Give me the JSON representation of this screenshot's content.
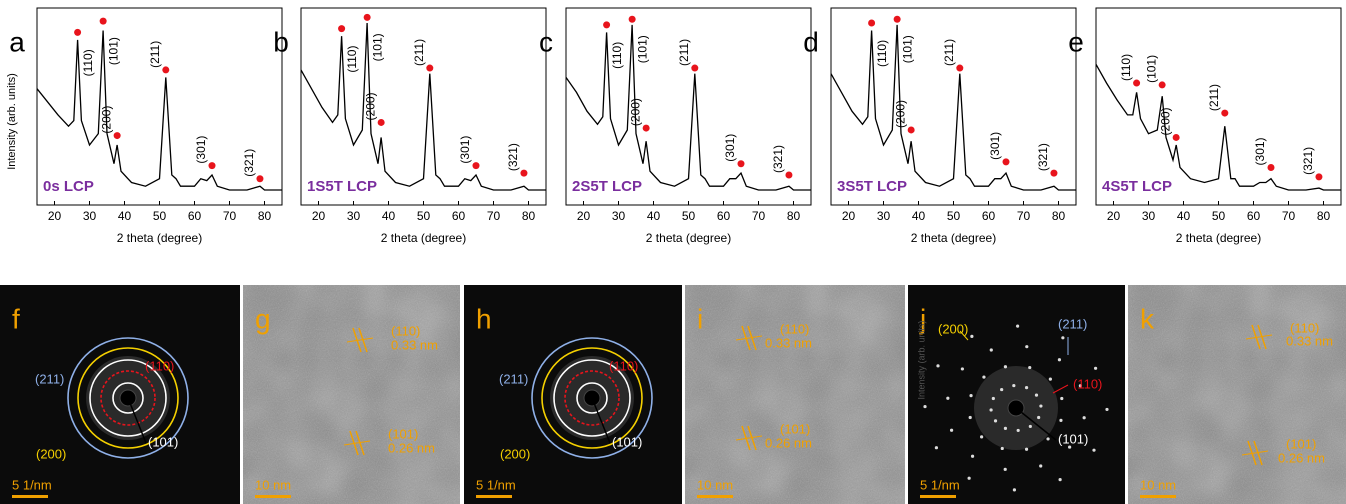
{
  "chart_data": [
    {
      "type": "line",
      "panel": "a",
      "sample": "0s LCP",
      "y_label": "Intensity (arb. units)",
      "x_label": "2 theta (degree)",
      "color": "#000000",
      "x": [
        15,
        18,
        21,
        24,
        25.5,
        26.6,
        27.7,
        30,
        32.5,
        33.9,
        35,
        37,
        37.9,
        39,
        42,
        46,
        50,
        51.8,
        53.5,
        54.7,
        56,
        60,
        61.8,
        63.5,
        65,
        66.5,
        70,
        75,
        78.7,
        80,
        85
      ],
      "values": [
        62,
        55,
        48,
        42,
        45,
        88,
        45,
        32,
        38,
        93,
        38,
        22,
        32,
        18,
        12,
        10,
        14,
        68,
        16,
        14,
        10,
        10,
        14,
        13,
        16,
        10,
        8,
        8,
        10,
        8,
        8
      ],
      "xlim": [
        15,
        85
      ],
      "ylim": [
        0,
        105
      ],
      "xticks": [
        20,
        30,
        40,
        50,
        60,
        70,
        80
      ],
      "peaks": {
        "color": "#e8141c",
        "labels": [
          "(110)",
          "(101)",
          "(200)",
          "(211)",
          "(301)",
          "(321)"
        ],
        "x": [
          26.6,
          33.9,
          37.9,
          51.8,
          65,
          78.7
        ],
        "y": [
          92,
          98,
          37,
          72,
          21,
          14
        ]
      }
    },
    {
      "type": "line",
      "panel": "b",
      "sample": "1S5T LCP",
      "x_label": "2 theta (degree)",
      "color": "#000000",
      "x": [
        15,
        18,
        21,
        24,
        25.5,
        26.6,
        27.7,
        30,
        32.5,
        33.9,
        35,
        37,
        37.9,
        39,
        42,
        46,
        50,
        51.8,
        53.5,
        54.7,
        56,
        60,
        61.8,
        63.5,
        65,
        66.5,
        70,
        75,
        78.7,
        80,
        85
      ],
      "values": [
        72,
        62,
        52,
        44,
        48,
        90,
        46,
        32,
        40,
        97,
        38,
        22,
        36,
        18,
        12,
        10,
        14,
        70,
        16,
        14,
        10,
        10,
        14,
        13,
        16,
        10,
        8,
        8,
        10,
        8,
        8
      ],
      "xlim": [
        15,
        85
      ],
      "ylim": [
        0,
        105
      ],
      "xticks": [
        20,
        30,
        40,
        50,
        60,
        70,
        80
      ],
      "peaks": {
        "color": "#e8141c",
        "labels": [
          "(110)",
          "(101)",
          "(200)",
          "(211)",
          "(301)",
          "(321)"
        ],
        "x": [
          26.6,
          33.9,
          37.9,
          51.8,
          65,
          78.7
        ],
        "y": [
          94,
          100,
          44,
          73,
          21,
          17
        ]
      }
    },
    {
      "type": "line",
      "panel": "c",
      "sample": "2S5T LCP",
      "x_label": "2 theta (degree)",
      "color": "#000000",
      "x": [
        15,
        18,
        21,
        24,
        25.5,
        26.6,
        27.7,
        30,
        32.5,
        33.9,
        35,
        37,
        37.9,
        39,
        42,
        46,
        50,
        51.8,
        53.5,
        54.7,
        56,
        60,
        61.8,
        63.5,
        65,
        66.5,
        70,
        75,
        78.7,
        80,
        85
      ],
      "values": [
        68,
        60,
        50,
        43,
        47,
        92,
        46,
        32,
        40,
        96,
        38,
        22,
        34,
        18,
        12,
        10,
        14,
        70,
        16,
        14,
        10,
        10,
        14,
        14,
        17,
        10,
        8,
        8,
        10,
        8,
        8
      ],
      "xlim": [
        15,
        85
      ],
      "ylim": [
        0,
        105
      ],
      "xticks": [
        20,
        30,
        40,
        50,
        60,
        70,
        80
      ],
      "peaks": {
        "color": "#e8141c",
        "labels": [
          "(110)",
          "(101)",
          "(200)",
          "(211)",
          "(301)",
          "(321)"
        ],
        "x": [
          26.6,
          33.9,
          37.9,
          51.8,
          65,
          78.7
        ],
        "y": [
          96,
          99,
          41,
          73,
          22,
          16
        ]
      }
    },
    {
      "type": "line",
      "panel": "d",
      "sample": "3S5T LCP",
      "x_label": "2 theta (degree)",
      "color": "#000000",
      "x": [
        15,
        18,
        21,
        24,
        25.5,
        26.6,
        27.7,
        30,
        32.5,
        33.9,
        35,
        37,
        37.9,
        39,
        42,
        46,
        50,
        51.8,
        53.5,
        54.7,
        56,
        60,
        61.8,
        63.5,
        65,
        66.5,
        70,
        75,
        78.7,
        80,
        85
      ],
      "values": [
        70,
        60,
        50,
        43,
        47,
        93,
        46,
        32,
        40,
        96,
        38,
        22,
        34,
        18,
        12,
        10,
        14,
        70,
        16,
        14,
        10,
        10,
        14,
        14,
        17,
        10,
        8,
        8,
        10,
        8,
        8
      ],
      "xlim": [
        15,
        85
      ],
      "ylim": [
        0,
        105
      ],
      "xticks": [
        20,
        30,
        40,
        50,
        60,
        70,
        80
      ],
      "peaks": {
        "color": "#e8141c",
        "labels": [
          "(110)",
          "(101)",
          "(200)",
          "(211)",
          "(301)",
          "(321)"
        ],
        "x": [
          26.6,
          33.9,
          37.9,
          51.8,
          65,
          78.7
        ],
        "y": [
          97,
          99,
          40,
          73,
          23,
          17
        ]
      }
    },
    {
      "type": "line",
      "panel": "e",
      "sample": "4S5T LCP",
      "x_label": "2 theta (degree)",
      "color": "#000000",
      "x": [
        15,
        18,
        21,
        24,
        25.5,
        26.6,
        27.7,
        30,
        32.5,
        33.9,
        35,
        37,
        37.9,
        39,
        42,
        46,
        50,
        51.8,
        53.5,
        54.7,
        56,
        60,
        61.8,
        63.5,
        65,
        66.5,
        70,
        75,
        78.7,
        80,
        85
      ],
      "values": [
        75,
        65,
        56,
        48,
        48,
        60,
        46,
        38,
        40,
        58,
        36,
        24,
        32,
        20,
        14,
        12,
        14,
        42,
        14,
        14,
        10,
        10,
        12,
        12,
        14,
        10,
        8,
        8,
        9,
        8,
        8
      ],
      "xlim": [
        15,
        85
      ],
      "ylim": [
        0,
        105
      ],
      "xticks": [
        20,
        30,
        40,
        50,
        60,
        70,
        80
      ],
      "peaks": {
        "color": "#e8141c",
        "labels": [
          "(110)",
          "(101)",
          "(200)",
          "(211)",
          "(301)",
          "(321)"
        ],
        "x": [
          26.6,
          33.9,
          37.9,
          51.8,
          65,
          78.7
        ],
        "y": [
          65,
          64,
          36,
          49,
          20,
          15
        ]
      }
    }
  ],
  "images": [
    {
      "letter": "f",
      "kind": "saed",
      "scale_bar": "5 1/nm",
      "notes": [
        {
          "text": "(211)",
          "color": "#8fb0e8"
        },
        {
          "text": "(110)",
          "color": "#e8141c"
        },
        {
          "text": "(200)",
          "color": "#f5d000"
        },
        {
          "text": "(101)",
          "color": "#ffffff"
        }
      ]
    },
    {
      "letter": "g",
      "kind": "hrtem",
      "scale_bar": "10 nm",
      "notes": [
        {
          "text": "(110)",
          "color": "#f0a000"
        },
        {
          "text": "0.33 nm",
          "color": "#f0a000"
        },
        {
          "text": "(101)",
          "color": "#f0a000"
        },
        {
          "text": "0.26 nm",
          "color": "#f0a000"
        }
      ]
    },
    {
      "letter": "h",
      "kind": "saed",
      "scale_bar": "5 1/nm",
      "notes": [
        {
          "text": "(211)",
          "color": "#8fb0e8"
        },
        {
          "text": "(110)",
          "color": "#e8141c"
        },
        {
          "text": "(200)",
          "color": "#f5d000"
        },
        {
          "text": "(101)",
          "color": "#ffffff"
        }
      ]
    },
    {
      "letter": "i",
      "kind": "hrtem",
      "scale_bar": "10 nm",
      "notes": [
        {
          "text": "(110)",
          "color": "#f0a000"
        },
        {
          "text": "0.33 nm",
          "color": "#f0a000"
        },
        {
          "text": "(101)",
          "color": "#f0a000"
        },
        {
          "text": "0.26 nm",
          "color": "#f0a000"
        }
      ]
    },
    {
      "letter": "j",
      "kind": "spots",
      "scale_bar": "5 1/nm",
      "notes": [
        {
          "text": "(200)",
          "color": "#f5d000"
        },
        {
          "text": "(211)",
          "color": "#8fb0e8"
        },
        {
          "text": "(110)",
          "color": "#e8141c"
        },
        {
          "text": "(101)",
          "color": "#ffffff"
        },
        {
          "text": "Intensity (arb. units)",
          "color": "#555555"
        }
      ]
    },
    {
      "letter": "k",
      "kind": "hrtem",
      "scale_bar": "10 nm",
      "notes": [
        {
          "text": "(110)",
          "color": "#f0a000"
        },
        {
          "text": "0.33 nm",
          "color": "#f0a000"
        },
        {
          "text": "(101)",
          "color": "#f0a000"
        },
        {
          "text": "0.26 nm",
          "color": "#f0a000"
        }
      ]
    }
  ]
}
